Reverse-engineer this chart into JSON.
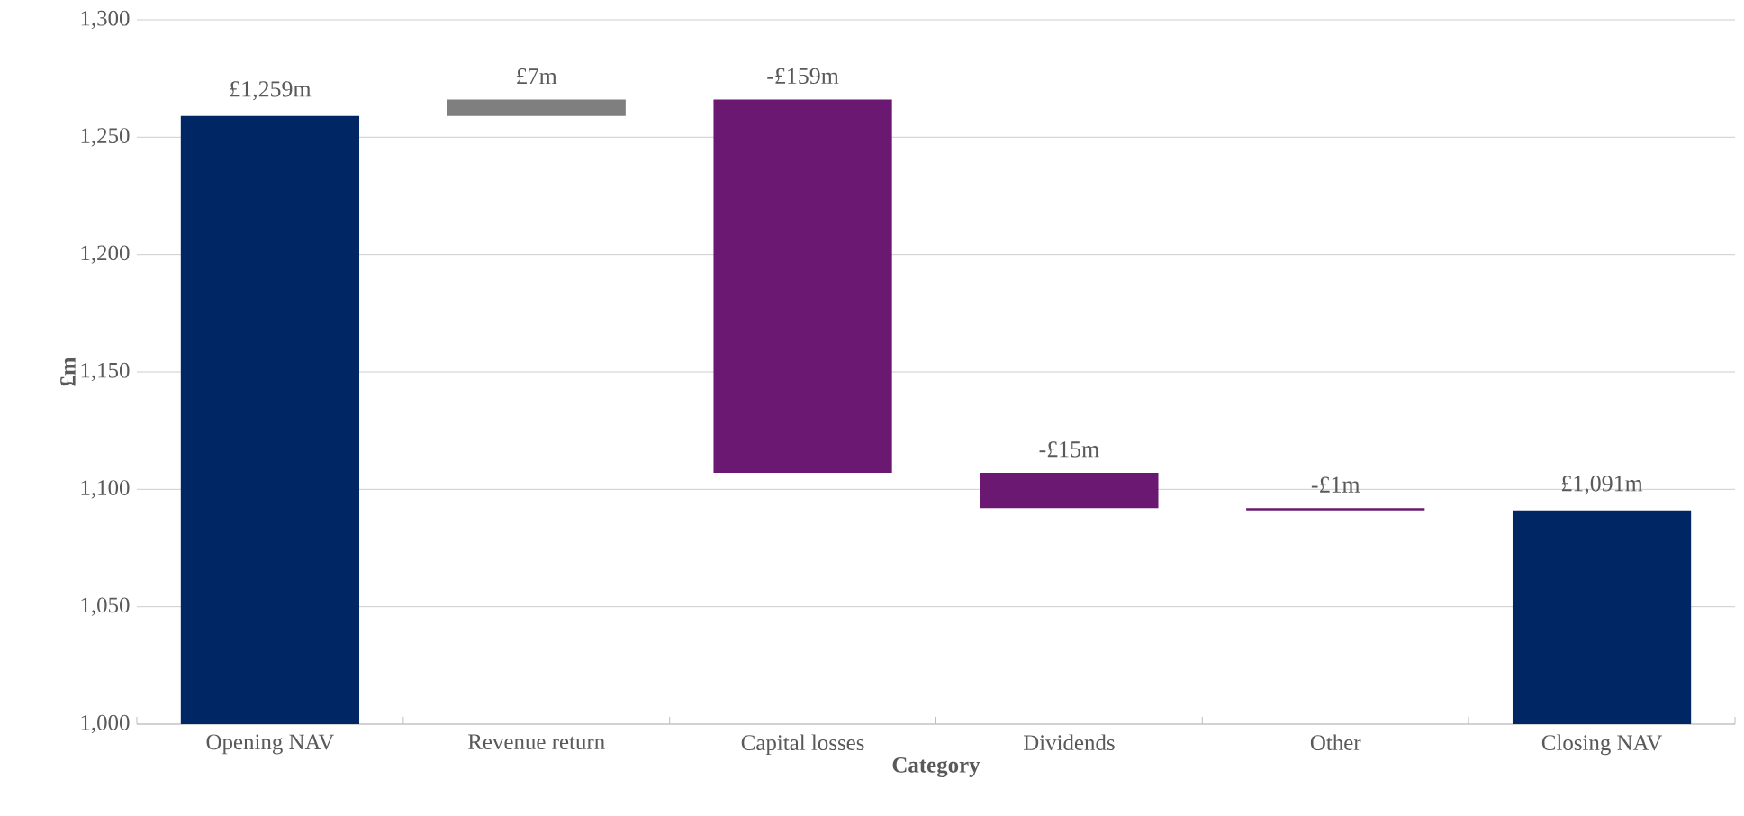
{
  "chart_data": {
    "type": "bar",
    "xlabel": "Category",
    "ylabel": "£m",
    "categories": [
      "Opening NAV",
      "Revenue return",
      "Capital losses",
      "Dividends",
      "Other",
      "Closing NAV"
    ],
    "base": [
      1000,
      1259,
      1266,
      1107,
      1092,
      1000
    ],
    "values": [
      259,
      7,
      -159,
      -15,
      -1,
      91
    ],
    "value_labels": [
      "£1,259m",
      "£7m",
      "-£159m",
      "-£15m",
      "-£1m",
      "£1,091m"
    ],
    "colors": [
      "#002664",
      "#7f7f7f",
      "#6a1872",
      "#6a1872",
      "#6a1872",
      "#002664"
    ],
    "ylim": [
      1000,
      1300
    ],
    "yticks": [
      {
        "value": 1000,
        "label": "1,000"
      },
      {
        "value": 1050,
        "label": "1,050"
      },
      {
        "value": 1100,
        "label": "1,100"
      },
      {
        "value": 1150,
        "label": "1,150"
      },
      {
        "value": 1200,
        "label": "1,200"
      },
      {
        "value": 1250,
        "label": "1,250"
      },
      {
        "value": 1300,
        "label": "1,300"
      }
    ],
    "grid": "y"
  }
}
